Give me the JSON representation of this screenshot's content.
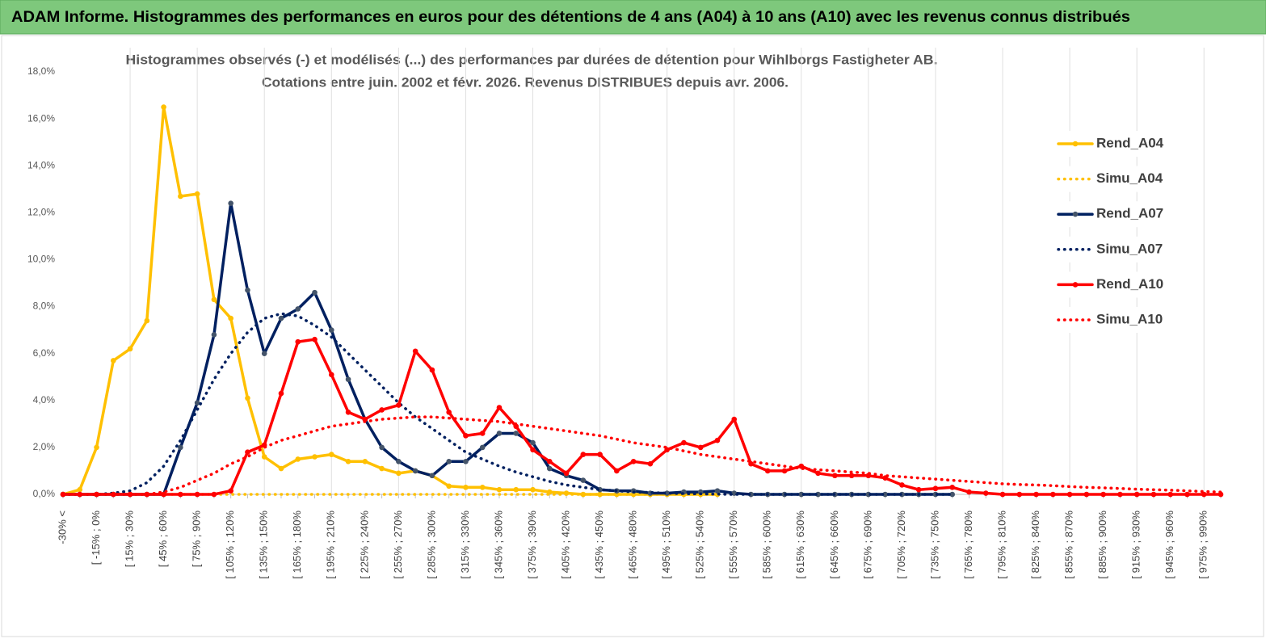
{
  "header": {
    "title": "ADAM Informe. Histogrammes des performances en euros pour des détentions de 4 ans (A04) à 10 ans (A10) avec les revenus connus distribués"
  },
  "chart_data": {
    "type": "line",
    "title": "Histogrammes observés (-) et modélisés (...) des performances par durées de détention pour Wihlborgs Fastigheter AB.",
    "subtitle": "Cotations entre juin. 2002 et févr. 2026. Revenus DISTRIBUES depuis avr. 2006.",
    "categories": [
      "-30% <",
      null,
      "[ -15% ; 0%",
      null,
      "[ 15% ; 30%",
      null,
      "[ 45% ; 60%",
      null,
      "[ 75% ; 90%",
      null,
      "[ 105% ; 120%",
      null,
      "[ 135% ; 150%",
      null,
      "[ 165% ; 180%",
      null,
      "[ 195% ; 210%",
      null,
      "[ 225% ; 240%",
      null,
      "[ 255% ; 270%",
      null,
      "[ 285% ; 300%",
      null,
      "[ 315% ; 330%",
      null,
      "[ 345% ; 360%",
      null,
      "[ 375% ; 390%",
      null,
      "[ 405% ; 420%",
      null,
      "[ 435% ; 450%",
      null,
      "[ 465% ; 480%",
      null,
      "[ 495% ; 510%",
      null,
      "[ 525% ; 540%",
      null,
      "[ 555% ; 570%",
      null,
      "[ 585% ; 600%",
      null,
      "[ 615% ; 630%",
      null,
      "[ 645% ; 660%",
      null,
      "[ 675% ; 690%",
      null,
      "[ 705% ; 720%",
      null,
      "[ 735% ; 750%",
      null,
      "[ 765% ; 780%",
      null,
      "[ 795% ; 810%",
      null,
      "[ 825% ; 840%",
      null,
      "[ 855% ; 870%",
      null,
      "[ 885% ; 900%",
      null,
      "[ 915% ; 930%",
      null,
      "[ 945% ; 960%",
      null,
      "[ 975% ; 990%",
      null
    ],
    "ylim": [
      0,
      18
    ],
    "yticks": [
      {
        "value": 0,
        "label": "0,0%"
      },
      {
        "value": 2,
        "label": "2,0%"
      },
      {
        "value": 4,
        "label": "4,0%"
      },
      {
        "value": 6,
        "label": "6,0%"
      },
      {
        "value": 8,
        "label": "8,0%"
      },
      {
        "value": 10,
        "label": "10,0%"
      },
      {
        "value": 12,
        "label": "12,0%"
      },
      {
        "value": 14,
        "label": "14,0%"
      },
      {
        "value": 16,
        "label": "16,0%"
      },
      {
        "value": 18,
        "label": "18,0%"
      }
    ],
    "xgrid": true,
    "ygrid": false,
    "legend": "right",
    "series": [
      {
        "name": "Rend_A04",
        "color": "#FFC000",
        "style": "solid",
        "values": [
          0,
          0.2,
          2.0,
          5.7,
          6.2,
          7.4,
          16.5,
          12.7,
          12.8,
          8.3,
          7.5,
          4.1,
          1.6,
          1.1,
          1.5,
          1.6,
          1.7,
          1.4,
          1.4,
          1.1,
          0.9,
          1.0,
          0.8,
          0.35,
          0.3,
          0.3,
          0.2,
          0.2,
          0.2,
          0.1,
          0.05,
          0,
          0,
          0,
          0,
          0,
          0,
          0,
          0,
          0,
          null,
          null,
          null,
          null,
          null,
          null,
          null,
          null,
          null,
          null,
          null,
          null,
          null,
          null,
          null,
          null,
          null,
          null,
          null,
          null,
          null,
          null,
          null,
          null,
          null,
          null,
          null,
          null,
          null,
          null
        ]
      },
      {
        "name": "Simu_A04",
        "color": "#FFC000",
        "style": "dotted",
        "values": [
          0,
          0,
          0,
          0,
          0,
          0,
          0,
          0,
          0,
          0,
          0,
          0,
          0,
          0,
          0,
          0,
          0,
          0,
          0,
          0,
          0,
          0,
          0,
          0,
          0,
          0,
          0,
          0,
          0,
          0,
          0,
          0,
          0,
          0,
          0,
          0,
          0,
          0,
          0,
          0,
          null,
          null,
          null,
          null,
          null,
          null,
          null,
          null,
          null,
          null,
          null,
          null,
          null,
          null,
          null,
          null,
          null,
          null,
          null,
          null,
          null,
          null,
          null,
          null,
          null,
          null,
          null,
          null,
          null,
          null
        ]
      },
      {
        "name": "Rend_A07",
        "color": "#002060",
        "style": "solid",
        "values": [
          0,
          0,
          0,
          0,
          0,
          0,
          0,
          2.0,
          3.9,
          6.8,
          12.4,
          8.7,
          6.0,
          7.5,
          7.9,
          8.6,
          7.0,
          4.9,
          3.2,
          2.0,
          1.4,
          1.0,
          0.8,
          1.4,
          1.4,
          2.0,
          2.6,
          2.6,
          2.2,
          1.1,
          0.8,
          0.6,
          0.2,
          0.15,
          0.15,
          0.05,
          0.05,
          0.1,
          0.1,
          0.15,
          0.05,
          0,
          0,
          0,
          0,
          0,
          0,
          0,
          0,
          0,
          0,
          0,
          0,
          0,
          null,
          null,
          null,
          null,
          null,
          null,
          null,
          null,
          null,
          null,
          null,
          null,
          null,
          null,
          null,
          null
        ]
      },
      {
        "name": "Simu_A07",
        "color": "#002060",
        "style": "dotted",
        "values": [
          0,
          0,
          0,
          0.05,
          0.15,
          0.5,
          1.2,
          2.3,
          3.6,
          4.9,
          6.0,
          6.9,
          7.5,
          7.7,
          7.6,
          7.2,
          6.7,
          6.0,
          5.3,
          4.6,
          3.9,
          3.3,
          2.8,
          2.3,
          1.8,
          1.5,
          1.2,
          0.95,
          0.75,
          0.55,
          0.4,
          0.3,
          0.2,
          0.15,
          0.1,
          0.08,
          0.05,
          0.03,
          0.02,
          0.01,
          0,
          0,
          0,
          0,
          0,
          0,
          0,
          0,
          0,
          0,
          0,
          0,
          0,
          0,
          null,
          null,
          null,
          null,
          null,
          null,
          null,
          null,
          null,
          null,
          null,
          null,
          null,
          null,
          null,
          null
        ]
      },
      {
        "name": "Rend_A10",
        "color": "#FF0000",
        "style": "solid",
        "values": [
          0,
          0,
          0,
          0,
          0,
          0,
          0,
          0,
          0,
          0,
          0.15,
          1.8,
          2.1,
          4.3,
          6.5,
          6.6,
          5.1,
          3.5,
          3.2,
          3.6,
          3.8,
          6.1,
          5.3,
          3.5,
          2.5,
          2.6,
          3.7,
          2.9,
          1.9,
          1.4,
          0.9,
          1.7,
          1.7,
          1.0,
          1.4,
          1.3,
          1.9,
          2.2,
          2.0,
          2.3,
          3.2,
          1.3,
          1.0,
          1.0,
          1.2,
          0.9,
          0.8,
          0.8,
          0.8,
          0.7,
          0.4,
          0.2,
          0.25,
          0.3,
          0.1,
          0.05,
          0,
          0,
          0,
          0,
          0,
          0,
          0,
          0,
          0,
          0,
          0,
          0,
          0,
          0
        ]
      },
      {
        "name": "Simu_A10",
        "color": "#FF0000",
        "style": "dotted",
        "values": [
          0,
          0,
          0,
          0,
          0,
          0,
          0.1,
          0.3,
          0.6,
          0.9,
          1.3,
          1.6,
          2.0,
          2.3,
          2.5,
          2.7,
          2.9,
          3.0,
          3.1,
          3.2,
          3.25,
          3.3,
          3.3,
          3.25,
          3.2,
          3.15,
          3.1,
          3.0,
          2.9,
          2.8,
          2.7,
          2.6,
          2.5,
          2.35,
          2.2,
          2.1,
          2.0,
          1.85,
          1.7,
          1.6,
          1.5,
          1.4,
          1.3,
          1.2,
          1.1,
          1.05,
          1.0,
          0.95,
          0.9,
          0.8,
          0.75,
          0.7,
          0.65,
          0.6,
          0.55,
          0.5,
          0.45,
          0.42,
          0.4,
          0.37,
          0.33,
          0.3,
          0.28,
          0.25,
          0.22,
          0.2,
          0.18,
          0.15,
          0.12,
          0.1
        ]
      }
    ]
  }
}
